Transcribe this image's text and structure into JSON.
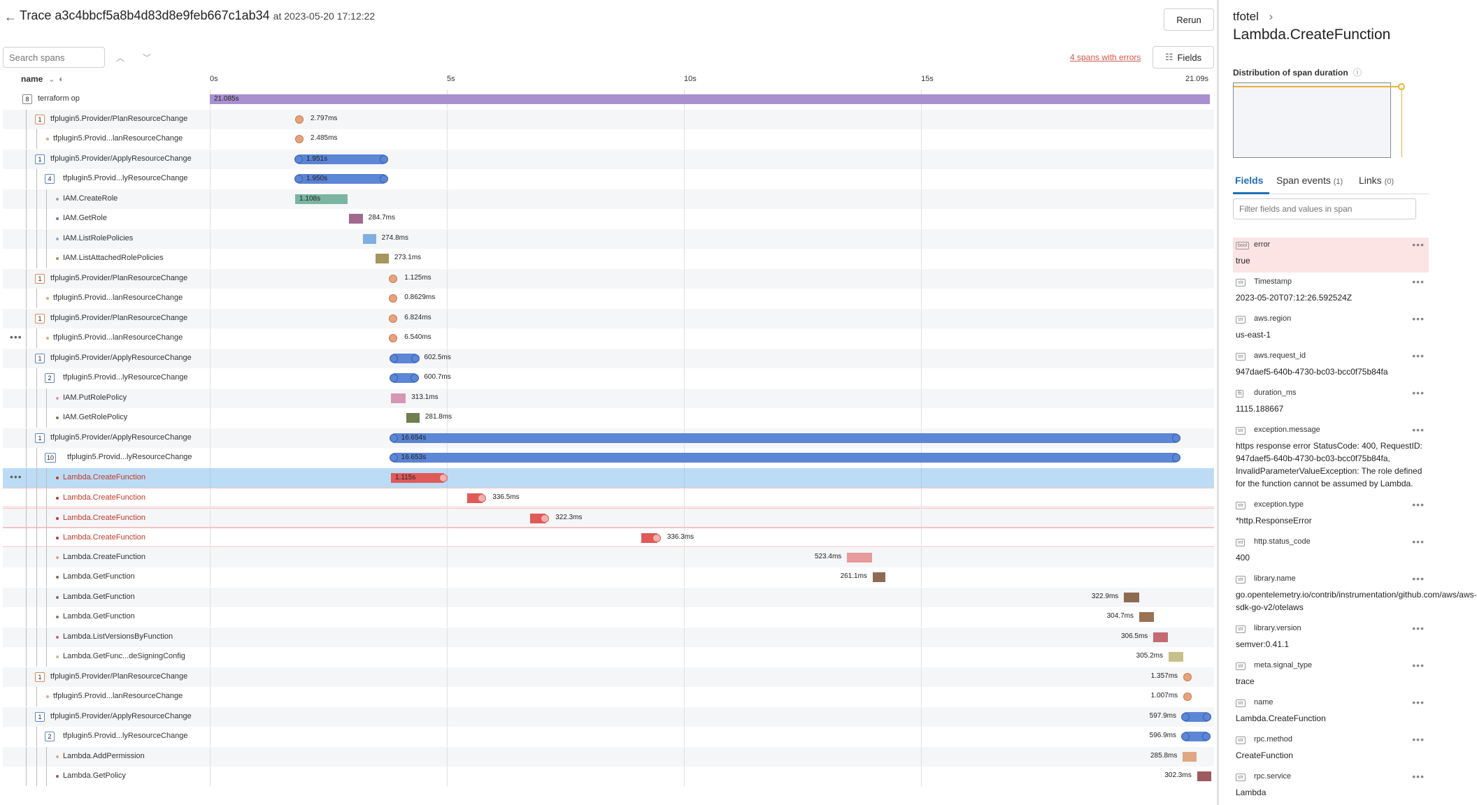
{
  "header": {
    "title": "Trace a3c4bbcf5a8b4d83d8e9feb667c1ab34",
    "at_text": "at 2023-05-20 17:12:22",
    "rerun": "Rerun"
  },
  "toolbar": {
    "search_placeholder": "Search spans",
    "errors_link": "4 spans with errors",
    "fields_button": "Fields"
  },
  "columns": {
    "name": "name"
  },
  "ticks": [
    "0s",
    "5s",
    "10s",
    "15s",
    "21.09s"
  ],
  "colors": {
    "purple": "#a98fd0",
    "blue": "#5c86d6",
    "orange": "#e8a37e",
    "red": "#e05a5a",
    "teal": "#79b5a0",
    "selected": "#bcdcf5"
  },
  "spans": [
    {
      "depth": 0,
      "count": "8",
      "name": "terraform op",
      "dur": "21.085s",
      "start_s": 0,
      "dur_s": 21.085,
      "color": "#a98fd0",
      "label_in": true
    },
    {
      "depth": 1,
      "count": "1",
      "name": "tfplugin5.Provider/PlanResourceChange",
      "dur": "2.797ms",
      "start_s": 1.8,
      "dur_s": 0,
      "color": "#e8a37e",
      "dot": true
    },
    {
      "depth": 2,
      "count": "",
      "name": "tfplugin5.Provid...lanResourceChange",
      "dur": "2.485ms",
      "start_s": 1.8,
      "dur_s": 0,
      "color": "#e8a37e",
      "dot": true
    },
    {
      "depth": 1,
      "count": "1",
      "name": "tfplugin5.Provider/ApplyResourceChange",
      "dur": "1.951s",
      "start_s": 1.8,
      "dur_s": 1.951,
      "color": "#5c86d6",
      "label_in": true,
      "caps": true
    },
    {
      "depth": 2,
      "count": "4",
      "name": "tfplugin5.Provid...lyResourceChange",
      "dur": "1.950s",
      "start_s": 1.8,
      "dur_s": 1.95,
      "color": "#5c86d6",
      "label_in": true,
      "caps": true
    },
    {
      "depth": 3,
      "count": "",
      "name": "IAM.CreateRole",
      "dur": "1.108s",
      "start_s": 1.8,
      "dur_s": 1.108,
      "color": "#79b5a0",
      "label_in": true
    },
    {
      "depth": 3,
      "count": "",
      "name": "IAM.GetRole",
      "dur": "284.7ms",
      "start_s": 2.94,
      "dur_s": 0.285,
      "color": "#a06a8e"
    },
    {
      "depth": 3,
      "count": "",
      "name": "IAM.ListRolePolicies",
      "dur": "274.8ms",
      "start_s": 3.23,
      "dur_s": 0.275,
      "color": "#7faee0"
    },
    {
      "depth": 3,
      "count": "",
      "name": "IAM.ListAttachedRolePolicies",
      "dur": "273.1ms",
      "start_s": 3.5,
      "dur_s": 0.273,
      "color": "#a5955f"
    },
    {
      "depth": 1,
      "count": "1",
      "name": "tfplugin5.Provider/PlanResourceChange",
      "dur": "1.125ms",
      "start_s": 3.78,
      "dur_s": 0,
      "color": "#e8a37e",
      "dot": true
    },
    {
      "depth": 2,
      "count": "",
      "name": "tfplugin5.Provid...lanResourceChange",
      "dur": "0.8629ms",
      "start_s": 3.78,
      "dur_s": 0,
      "color": "#e8a37e",
      "dot": true
    },
    {
      "depth": 1,
      "count": "1",
      "name": "tfplugin5.Provider/PlanResourceChange",
      "dur": "6.824ms",
      "start_s": 3.78,
      "dur_s": 0,
      "color": "#e8a37e",
      "dot": true
    },
    {
      "depth": 2,
      "count": "",
      "name": "tfplugin5.Provid...lanResourceChange",
      "dur": "6.540ms",
      "start_s": 3.78,
      "dur_s": 0,
      "color": "#e8a37e",
      "dot": true,
      "more": true
    },
    {
      "depth": 1,
      "count": "1",
      "name": "tfplugin5.Provider/ApplyResourceChange",
      "dur": "602.5ms",
      "start_s": 3.8,
      "dur_s": 0.6025,
      "color": "#5c86d6",
      "caps": true
    },
    {
      "depth": 2,
      "count": "2",
      "name": "tfplugin5.Provid...lyResourceChange",
      "dur": "600.7ms",
      "start_s": 3.8,
      "dur_s": 0.6007,
      "color": "#5c86d6",
      "caps": true
    },
    {
      "depth": 3,
      "count": "",
      "name": "IAM.PutRolePolicy",
      "dur": "313.1ms",
      "start_s": 3.82,
      "dur_s": 0.313,
      "color": "#d696b6"
    },
    {
      "depth": 3,
      "count": "",
      "name": "IAM.GetRolePolicy",
      "dur": "281.8ms",
      "start_s": 4.14,
      "dur_s": 0.282,
      "color": "#6f7f4f"
    },
    {
      "depth": 1,
      "count": "1",
      "name": "tfplugin5.Provider/ApplyResourceChange",
      "dur": "16.654s",
      "start_s": 3.8,
      "dur_s": 16.654,
      "color": "#5c86d6",
      "label_in": true,
      "caps": true
    },
    {
      "depth": 2,
      "count": "10",
      "name": "tfplugin5.Provid...lyResourceChange",
      "dur": "16.653s",
      "start_s": 3.8,
      "dur_s": 16.653,
      "color": "#5c86d6",
      "label_in": true,
      "caps": true
    },
    {
      "depth": 3,
      "count": "",
      "name": "Lambda.CreateFunction",
      "dur": "1.115s",
      "start_s": 3.82,
      "dur_s": 1.115,
      "color": "#e05a5a",
      "label_in": true,
      "err": true,
      "sel": true,
      "more": true,
      "endcap": true
    },
    {
      "depth": 3,
      "count": "",
      "name": "Lambda.CreateFunction",
      "dur": "336.5ms",
      "start_s": 5.42,
      "dur_s": 0.3365,
      "color": "#e05a5a",
      "err": true,
      "endcap": true
    },
    {
      "depth": 3,
      "count": "",
      "name": "Lambda.CreateFunction",
      "dur": "322.3ms",
      "start_s": 6.76,
      "dur_s": 0.3223,
      "color": "#e05a5a",
      "err": true,
      "endcap": true
    },
    {
      "depth": 3,
      "count": "",
      "name": "Lambda.CreateFunction",
      "dur": "336.3ms",
      "start_s": 9.1,
      "dur_s": 0.3363,
      "color": "#e05a5a",
      "err": true,
      "endcap": true
    },
    {
      "depth": 3,
      "count": "",
      "name": "Lambda.CreateFunction",
      "dur": "523.4ms",
      "start_s": 13.44,
      "dur_s": 0.5234,
      "color": "#e79a9a",
      "dur_left": true
    },
    {
      "depth": 3,
      "count": "",
      "name": "Lambda.GetFunction",
      "dur": "261.1ms",
      "start_s": 13.98,
      "dur_s": 0.2611,
      "color": "#8e6a52",
      "dur_left": true
    },
    {
      "depth": 3,
      "count": "",
      "name": "Lambda.GetFunction",
      "dur": "322.9ms",
      "start_s": 19.28,
      "dur_s": 0.3229,
      "color": "#8e6a52",
      "dur_left": true
    },
    {
      "depth": 3,
      "count": "",
      "name": "Lambda.GetFunction",
      "dur": "304.7ms",
      "start_s": 19.6,
      "dur_s": 0.3047,
      "color": "#9a7152",
      "dur_left": true
    },
    {
      "depth": 3,
      "count": "",
      "name": "Lambda.ListVersionsByFunction",
      "dur": "306.5ms",
      "start_s": 19.9,
      "dur_s": 0.3065,
      "color": "#c46a72",
      "dur_left": true,
      "striped": true
    },
    {
      "depth": 3,
      "count": "",
      "name": "Lambda.GetFunc...deSigningConfig",
      "dur": "305.2ms",
      "start_s": 20.22,
      "dur_s": 0.3052,
      "color": "#c8c08a",
      "dur_left": true
    },
    {
      "depth": 1,
      "count": "1",
      "name": "tfplugin5.Provider/PlanResourceChange",
      "dur": "1.357ms",
      "start_s": 20.53,
      "dur_s": 0,
      "color": "#e8a37e",
      "dot": true,
      "dur_left": true
    },
    {
      "depth": 2,
      "count": "",
      "name": "tfplugin5.Provid...lanResourceChange",
      "dur": "1.007ms",
      "start_s": 20.53,
      "dur_s": 0,
      "color": "#e8a37e",
      "dot": true,
      "dur_left": true
    },
    {
      "depth": 1,
      "count": "1",
      "name": "tfplugin5.Provider/ApplyResourceChange",
      "dur": "597.9ms",
      "start_s": 20.5,
      "dur_s": 0.5979,
      "color": "#5c86d6",
      "dur_left": true,
      "caps": true
    },
    {
      "depth": 2,
      "count": "2",
      "name": "tfplugin5.Provid...lyResourceChange",
      "dur": "596.9ms",
      "start_s": 20.5,
      "dur_s": 0.5969,
      "color": "#5c86d6",
      "dur_left": true,
      "caps": true
    },
    {
      "depth": 3,
      "count": "",
      "name": "Lambda.AddPermission",
      "dur": "285.8ms",
      "start_s": 20.52,
      "dur_s": 0.2858,
      "color": "#e0a882",
      "dur_left": true
    },
    {
      "depth": 3,
      "count": "",
      "name": "Lambda.GetPolicy",
      "dur": "302.3ms",
      "start_s": 20.82,
      "dur_s": 0.3023,
      "color": "#9e5a60",
      "dur_left": true
    }
  ],
  "panel": {
    "breadcrumb": "tfotel",
    "title": "Lambda.CreateFunction",
    "dist_label": "Distribution of span duration",
    "tabs": [
      {
        "label": "Fields",
        "count": ""
      },
      {
        "label": "Span events",
        "count": "(1)"
      },
      {
        "label": "Links",
        "count": "(0)"
      }
    ],
    "filter_placeholder": "Filter fields and values in span",
    "fields": [
      {
        "type": "bool",
        "name": "error",
        "value": "true",
        "err": true
      },
      {
        "type": "str",
        "name": "Timestamp",
        "value": "2023-05-20T07:12:26.592524Z"
      },
      {
        "type": "str",
        "name": "aws.region",
        "value": "us-east-1"
      },
      {
        "type": "str",
        "name": "aws.request_id",
        "value": "947daef5-640b-4730-bc03-bcc0f75b84fa"
      },
      {
        "type": "flt",
        "name": "duration_ms",
        "value": "1115.188667"
      },
      {
        "type": "str",
        "name": "exception.message",
        "value": "https response error StatusCode: 400, RequestID: 947daef5-640b-4730-bc03-bcc0f75b84fa, InvalidParameterValueException: The role defined for the function cannot be assumed by Lambda.",
        "lines": 4
      },
      {
        "type": "str",
        "name": "exception.type",
        "value": "*http.ResponseError"
      },
      {
        "type": "int",
        "name": "http.status_code",
        "value": "400"
      },
      {
        "type": "str",
        "name": "library.name",
        "value": "go.opentelemetry.io/contrib/instrumentation/github.com/aws/aws-sdk-go-v2/otelaws",
        "lines": 2
      },
      {
        "type": "str",
        "name": "library.version",
        "value": "semver:0.41.1"
      },
      {
        "type": "str",
        "name": "meta.signal_type",
        "value": "trace"
      },
      {
        "type": "str",
        "name": "name",
        "value": "Lambda.CreateFunction"
      },
      {
        "type": "str",
        "name": "rpc.method",
        "value": "CreateFunction"
      },
      {
        "type": "str",
        "name": "rpc.service",
        "value": "Lambda"
      }
    ]
  }
}
